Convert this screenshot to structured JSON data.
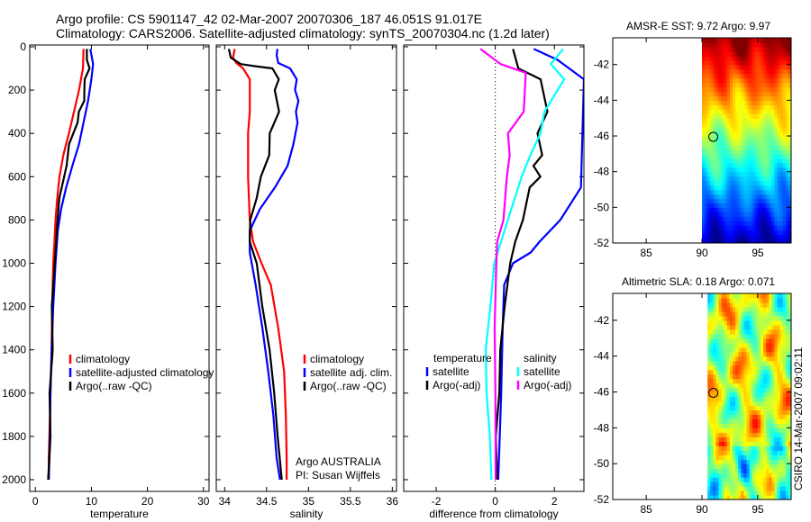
{
  "header": {
    "line1": "Argo profile: CS 5901147_42 02-Mar-2007 20070306_187 46.051S 91.017E",
    "line2": "Climatology: CARS2006. Satellite-adjusted climatology: synTS_20070304.nc (1.2d later)"
  },
  "colors": {
    "red": "#ff0000",
    "blue": "#0000ff",
    "black": "#000000",
    "cyan": "#00ffff",
    "magenta": "#ff00ff"
  },
  "chart_data": [
    {
      "type": "line",
      "id": "temperature",
      "xlabel": "temperature",
      "xlim": [
        -1,
        31
      ],
      "ylim": [
        2050,
        0
      ],
      "xticks": [
        0,
        10,
        20,
        30
      ],
      "yticks": [
        0,
        200,
        400,
        600,
        800,
        1000,
        1200,
        1400,
        1600,
        1800,
        2000
      ],
      "legend": [
        "climatology",
        "satellite-adjusted climatology",
        "Argo(..raw -QC)"
      ],
      "series": [
        {
          "name": "climatology",
          "color": "red",
          "x": [
            8.6,
            8.5,
            7.8,
            6.9,
            6.0,
            5.0,
            4.3,
            3.9,
            3.6,
            3.4,
            3.2,
            3.0,
            2.9,
            2.7,
            2.6,
            2.5,
            2.4,
            2.4
          ],
          "y": [
            10,
            100,
            200,
            300,
            400,
            500,
            600,
            700,
            800,
            900,
            1000,
            1200,
            1400,
            1600,
            1700,
            1800,
            1900,
            2000
          ]
        },
        {
          "name": "satellite-adjusted climatology",
          "color": "blue",
          "x": [
            9.8,
            10.3,
            10.0,
            9.4,
            8.6,
            7.8,
            6.6,
            5.5,
            4.6,
            4.0,
            3.6,
            3.2,
            2.9,
            2.7,
            2.6,
            2.5,
            2.4
          ],
          "y": [
            10,
            80,
            150,
            250,
            350,
            450,
            550,
            650,
            750,
            850,
            1000,
            1200,
            1400,
            1600,
            1800,
            1900,
            2000
          ]
        },
        {
          "name": "Argo(..raw -QC)",
          "color": "black",
          "x": [
            9.2,
            9.3,
            9.5,
            9.0,
            8.6,
            8.8,
            7.8,
            7.4,
            6.2,
            5.4,
            4.4,
            3.8,
            3.4,
            3.1,
            2.9,
            2.7,
            2.6,
            2.5,
            2.4
          ],
          "y": [
            10,
            60,
            100,
            150,
            200,
            250,
            300,
            350,
            450,
            550,
            700,
            850,
            1000,
            1200,
            1400,
            1600,
            1800,
            1900,
            2000
          ]
        }
      ]
    },
    {
      "type": "line",
      "id": "salinity",
      "xlabel": "salinity",
      "xlim": [
        33.9,
        36.05
      ],
      "ylim": [
        2050,
        0
      ],
      "xticks": [
        34,
        34.5,
        35,
        35.5,
        36
      ],
      "xtick_labels": [
        "34",
        "34.5",
        "35",
        "35.5",
        "36"
      ],
      "legend": [
        "climatology",
        "satellite adj. clim.",
        "Argo(..raw -QC)"
      ],
      "annotation": [
        "Argo AUSTRALIA",
        "PI: Susan Wijffels"
      ],
      "series": [
        {
          "name": "climatology",
          "color": "red",
          "x": [
            34.12,
            34.1,
            34.14,
            34.22,
            34.3,
            34.3,
            34.28,
            34.28,
            34.3,
            34.34,
            34.44,
            34.55,
            34.64,
            34.71,
            34.73,
            34.74,
            34.74
          ],
          "y": [
            10,
            50,
            75,
            100,
            150,
            300,
            400,
            600,
            800,
            900,
            1000,
            1100,
            1300,
            1500,
            1700,
            1900,
            2000
          ]
        },
        {
          "name": "satellite adj. clim.",
          "color": "blue",
          "x": [
            34.63,
            34.62,
            34.64,
            34.78,
            34.86,
            34.84,
            34.88,
            34.85,
            34.87,
            34.82,
            34.75,
            34.6,
            34.42,
            34.3,
            34.3,
            34.37,
            34.45,
            34.52,
            34.58,
            34.62,
            34.66
          ],
          "y": [
            10,
            40,
            75,
            100,
            150,
            200,
            250,
            300,
            350,
            450,
            550,
            650,
            750,
            850,
            950,
            1100,
            1300,
            1500,
            1700,
            1900,
            2000
          ]
        },
        {
          "name": "Argo(..raw -QC)",
          "color": "black",
          "x": [
            34.05,
            34.08,
            34.18,
            34.38,
            34.56,
            34.65,
            34.6,
            34.64,
            34.55,
            34.52,
            34.44,
            34.38,
            34.3,
            34.31,
            34.37,
            34.46,
            34.53,
            34.59,
            34.64,
            34.67
          ],
          "y": [
            10,
            50,
            80,
            90,
            100,
            150,
            200,
            300,
            400,
            500,
            600,
            700,
            800,
            900,
            1000,
            1200,
            1400,
            1600,
            1800,
            2000
          ]
        }
      ]
    },
    {
      "type": "line",
      "id": "difference",
      "xlabel": "difference from climatology",
      "xlim": [
        -3.1,
        3.0
      ],
      "ylim": [
        2050,
        0
      ],
      "xticks": [
        -2,
        0,
        2
      ],
      "legend_left_title": "temperature",
      "legend_right_title": "salinity",
      "legend_left": [
        "satellite",
        "Argo(-adj)"
      ],
      "legend_right": [
        "satellite",
        "Argo(-adj)"
      ],
      "series": [
        {
          "name": "temperature satellite",
          "color": "blue",
          "x": [
            1.3,
            2.1,
            3.0,
            2.9,
            2.2,
            1.5,
            1.2,
            0.6,
            0.3,
            0.25,
            0.2,
            0.15,
            0.1
          ],
          "y": [
            10,
            60,
            150,
            650,
            800,
            900,
            950,
            1000,
            1100,
            1300,
            1600,
            1800,
            2000
          ]
        },
        {
          "name": "temperature Argo(-adj)",
          "color": "black",
          "x": [
            0.6,
            0.8,
            1.5,
            1.8,
            1.4,
            1.6,
            1.3,
            1.5,
            1.2,
            0.9,
            0.7,
            0.5,
            0.3,
            0.2,
            0.1,
            0.05,
            0.05
          ],
          "y": [
            10,
            100,
            150,
            300,
            400,
            500,
            550,
            600,
            650,
            800,
            900,
            1000,
            1200,
            1400,
            1600,
            1800,
            2000
          ]
        },
        {
          "name": "salinity satellite",
          "color": "cyan",
          "x": [
            2.3,
            1.9,
            2.3,
            1.7,
            1.5,
            1.2,
            0.9,
            0.4,
            0.0,
            -0.2,
            -0.3,
            -0.3,
            -0.2,
            -0.1
          ],
          "y": [
            10,
            80,
            150,
            300,
            400,
            500,
            600,
            800,
            1000,
            1200,
            1400,
            1600,
            1800,
            2000
          ]
        },
        {
          "name": "salinity Argo(-adj)",
          "color": "magenta",
          "x": [
            -0.5,
            0.2,
            1.0,
            1.0,
            0.4,
            0.5,
            0.4,
            0.25,
            0.1,
            0.0,
            0.0,
            0.0,
            0.0
          ],
          "y": [
            10,
            80,
            120,
            300,
            400,
            500,
            600,
            800,
            900,
            1000,
            1300,
            1600,
            2000
          ]
        }
      ]
    },
    {
      "type": "heatmap",
      "id": "sst",
      "title": "AMSR-E SST: 9.72 Argo: 9.97",
      "xlim": [
        82,
        98
      ],
      "ylim": [
        -52,
        -40.5
      ],
      "xticks": [
        85,
        90,
        95
      ],
      "yticks": [
        -42,
        -44,
        -46,
        -48,
        -50,
        -52
      ],
      "data_xrange": [
        90,
        98
      ],
      "marker": {
        "lon": 91.017,
        "lat": -46.051
      }
    },
    {
      "type": "heatmap",
      "id": "sla",
      "title": "Altimetric SLA: 0.18 Argo: 0.071",
      "xlim": [
        82,
        98
      ],
      "ylim": [
        -52,
        -40.5
      ],
      "xticks": [
        85,
        90,
        95
      ],
      "yticks": [
        -42,
        -44,
        -46,
        -48,
        -50,
        -52
      ],
      "data_xrange": [
        90.5,
        98
      ],
      "marker": {
        "lon": 91.017,
        "lat": -46.051
      }
    }
  ],
  "footer": {
    "credit": "CSIRO 14-Mar-2007 09:02:11"
  }
}
